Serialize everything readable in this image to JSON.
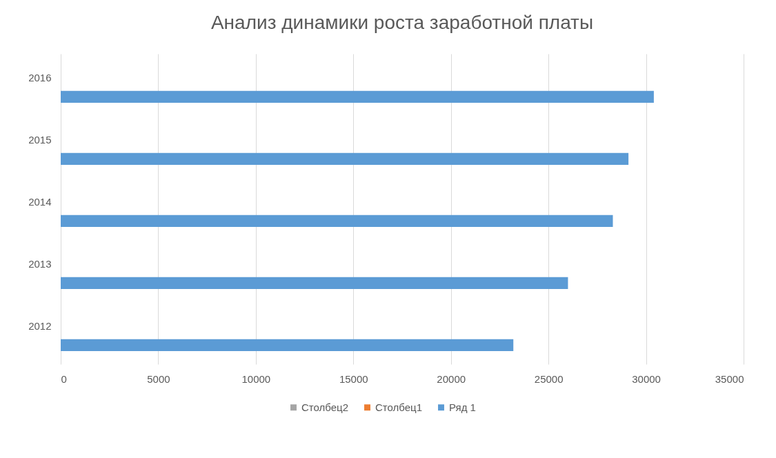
{
  "chart_data": {
    "type": "bar",
    "orientation": "horizontal",
    "title": "Анализ динамики роста заработной платы",
    "categories": [
      "2016",
      "2015",
      "2014",
      "2013",
      "2012"
    ],
    "series": [
      {
        "name": "Столбец2",
        "color": "#a5a5a5",
        "values": [
          null,
          null,
          null,
          null,
          null
        ]
      },
      {
        "name": "Столбец1",
        "color": "#ed7d31",
        "values": [
          null,
          null,
          null,
          null,
          null
        ]
      },
      {
        "name": "Ряд 1",
        "color": "#5b9bd5",
        "values": [
          30400,
          29100,
          28300,
          26000,
          23200
        ]
      }
    ],
    "xlim": [
      0,
      35000
    ],
    "xticks": [
      0,
      5000,
      10000,
      15000,
      20000,
      25000,
      30000,
      35000
    ],
    "grid": "x",
    "legend": "bottom"
  }
}
